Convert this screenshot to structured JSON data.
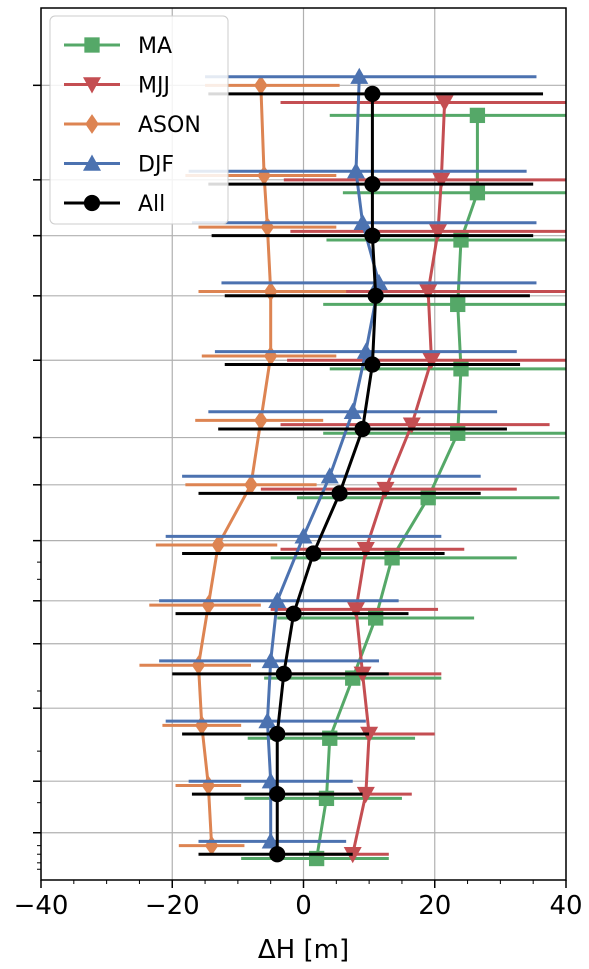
{
  "chart_data": {
    "type": "line",
    "orientation": "horizontal-errorbar-profile",
    "xlabel": "ΔH [m]",
    "ylabel": "",
    "xlim": [
      -40,
      40
    ],
    "x_ticks": [
      -40,
      -20,
      0,
      20,
      40
    ],
    "x_tick_labels": [
      "−40",
      "−20",
      "0",
      "20",
      "40"
    ],
    "y_levels": 18,
    "grid": true,
    "legend_position": "top-left",
    "series": [
      {
        "name": "MA",
        "color": "#55a868",
        "marker": "square",
        "x": [
          26.5,
          26.5,
          24.0,
          23.5,
          24.0,
          23.5,
          19.0,
          13.5,
          11.0,
          7.5,
          4.0,
          3.5,
          2.0
        ],
        "level": [
          2.5,
          4.3,
          5.4,
          6.9,
          8.4,
          9.9,
          11.4,
          12.8,
          14.2,
          15.6,
          17.0,
          18.4,
          19.8
        ],
        "xerr_lo": [
          4.0,
          6.0,
          3.5,
          3.0,
          4.0,
          3.0,
          -1.0,
          -5.0,
          -4.0,
          -6.0,
          -8.5,
          -9.0,
          -9.5
        ],
        "xerr_hi": [
          40.0,
          40.0,
          40.0,
          40.0,
          40.0,
          40.0,
          39.0,
          32.5,
          26.0,
          21.0,
          17.0,
          15.0,
          13.0
        ]
      },
      {
        "name": "MJJ",
        "color": "#c44e52",
        "marker": "triangle-down",
        "x": [
          21.5,
          21.0,
          20.5,
          19.0,
          19.5,
          16.5,
          12.5,
          9.5,
          8.0,
          9.0,
          10.0,
          9.5,
          7.5
        ],
        "level": [
          2.2,
          4.0,
          5.2,
          6.6,
          8.2,
          9.7,
          11.2,
          12.6,
          14.0,
          15.5,
          16.9,
          18.3,
          19.7
        ],
        "xerr_lo": [
          -3.5,
          -3.0,
          -2.0,
          -4.5,
          -2.5,
          -3.5,
          -6.5,
          -3.5,
          -5.0,
          -3.0,
          1.0,
          2.0,
          2.0
        ],
        "xerr_hi": [
          40.0,
          40.0,
          40.0,
          40.0,
          40.0,
          37.5,
          32.5,
          24.5,
          20.5,
          21.0,
          20.0,
          16.5,
          13.0
        ]
      },
      {
        "name": "ASON",
        "color": "#dd8452",
        "marker": "diamond",
        "x": [
          -6.5,
          -6.0,
          -5.5,
          -5.0,
          -5.0,
          -6.5,
          -8.0,
          -13.0,
          -14.5,
          -16.0,
          -15.5,
          -14.5,
          -14.0
        ],
        "level": [
          1.8,
          3.9,
          5.1,
          6.6,
          8.1,
          9.6,
          11.1,
          12.5,
          13.9,
          15.3,
          16.7,
          18.1,
          19.5
        ],
        "xerr_lo": [
          -15.0,
          -18.0,
          -16.0,
          -16.0,
          -15.5,
          -16.5,
          -18.0,
          -22.5,
          -23.5,
          -25.0,
          -21.5,
          -19.5,
          -19.0
        ],
        "xerr_hi": [
          5.5,
          5.0,
          5.0,
          6.5,
          5.0,
          3.0,
          2.0,
          -4.0,
          -6.5,
          -8.0,
          -9.5,
          -9.5,
          -9.0
        ]
      },
      {
        "name": "DJF",
        "color": "#4c72b0",
        "marker": "triangle-up",
        "x": [
          8.5,
          8.0,
          9.0,
          11.5,
          9.5,
          7.5,
          4.0,
          0.0,
          -4.0,
          -5.0,
          -5.5,
          -5.0,
          -5.0
        ],
        "level": [
          1.6,
          3.8,
          5.0,
          6.4,
          8.0,
          9.4,
          10.9,
          12.3,
          13.8,
          15.2,
          16.6,
          18.0,
          19.4
        ],
        "xerr_lo": [
          -15.0,
          -17.5,
          -17.0,
          -12.5,
          -13.5,
          -14.5,
          -18.5,
          -21.0,
          -22.0,
          -22.0,
          -21.0,
          -17.5,
          -16.0
        ],
        "xerr_hi": [
          35.5,
          34.0,
          35.5,
          35.5,
          32.5,
          29.5,
          27.0,
          21.0,
          14.5,
          11.5,
          9.5,
          7.5,
          6.5
        ]
      },
      {
        "name": "All",
        "color": "#000000",
        "marker": "circle",
        "x": [
          10.5,
          10.5,
          10.5,
          11.0,
          10.5,
          9.0,
          5.5,
          1.5,
          -1.5,
          -3.0,
          -4.0,
          -4.0,
          -4.0
        ],
        "level": [
          2.0,
          4.1,
          5.3,
          6.7,
          8.3,
          9.8,
          11.3,
          12.7,
          14.1,
          15.5,
          16.9,
          18.3,
          19.7
        ],
        "xerr_lo": [
          -14.5,
          -14.5,
          -14.0,
          -12.0,
          -12.0,
          -13.0,
          -16.0,
          -18.5,
          -19.5,
          -20.0,
          -18.5,
          -17.0,
          -16.0
        ],
        "xerr_hi": [
          36.5,
          35.0,
          35.0,
          34.5,
          33.0,
          31.0,
          27.0,
          21.5,
          16.0,
          13.0,
          10.0,
          9.0,
          7.5
        ]
      }
    ]
  }
}
